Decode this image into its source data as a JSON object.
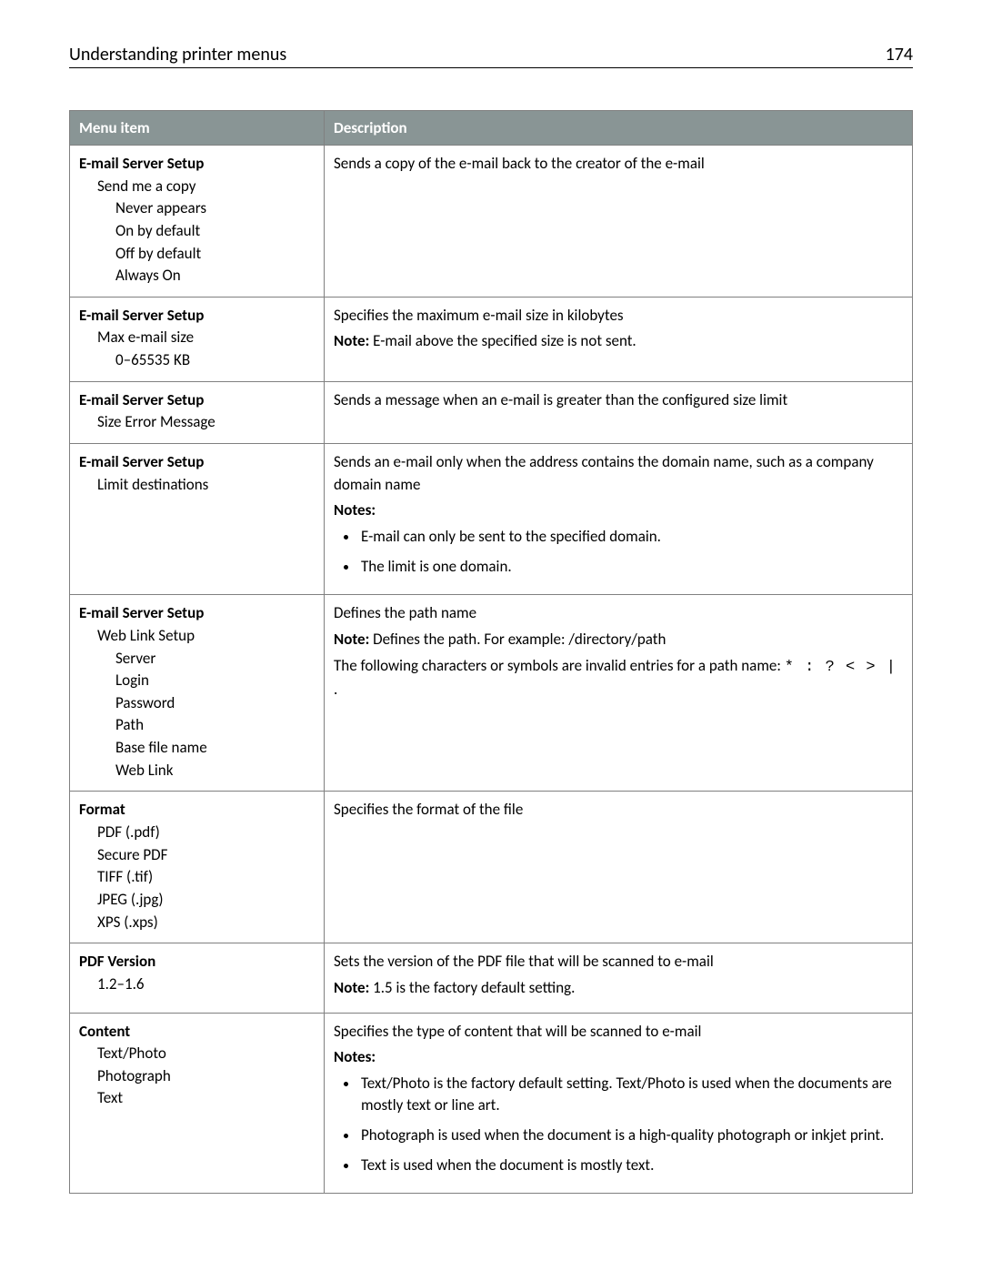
{
  "header": {
    "title": "Understanding printer menus",
    "page_number": "174"
  },
  "table": {
    "columns": {
      "menu_item": "Menu item",
      "description": "Description"
    },
    "header_bg": "#899595",
    "header_fg": "#ffffff",
    "border_color": "#808080"
  },
  "rows": {
    "r1": {
      "title": "E-mail Server Setup",
      "l1a": "Send me a copy",
      "l2a": "Never appears",
      "l2b": "On by default",
      "l2c": "Off by default",
      "l2d": "Always On",
      "desc": "Sends a copy of the e-mail back to the creator of the e-mail"
    },
    "r2": {
      "title": "E-mail Server Setup",
      "l1a": "Max e-mail size",
      "l2a": "0–65535 KB",
      "desc_line1": "Specifies the maximum e-mail size in kilobytes",
      "note_label": "Note:",
      "note_text": " E-mail above the specified size is not sent."
    },
    "r3": {
      "title": "E-mail Server Setup",
      "l1a": "Size Error Message",
      "desc": "Sends a message when an e-mail is greater than the configured size limit"
    },
    "r4": {
      "title": "E-mail Server Setup",
      "l1a": "Limit destinations",
      "desc_line1": "Sends an e-mail only when the address contains the domain name, such as a company domain name",
      "notes_label": "Notes:",
      "b1": "E-mail can only be sent to the specified domain.",
      "b2": "The limit is one domain."
    },
    "r5": {
      "title": "E-mail Server Setup",
      "l1a": "Web Link Setup",
      "l2a": "Server",
      "l2b": "Login",
      "l2c": "Password",
      "l2d": "Path",
      "l2e": "Base file name",
      "l2f": "Web Link",
      "desc_line1": "Defines the path name",
      "note_label": "Note:",
      "note_text": " Defines the path. For example: /directory/path",
      "desc_line3a": "The following characters or symbols are invalid entries for a path name: ",
      "invalid_chars": "* : ? < > |",
      "desc_line3b": " ."
    },
    "r6": {
      "title": "Format",
      "l1a": "PDF (.pdf)",
      "l1b": "Secure PDF",
      "l1c": "TIFF (.tif)",
      "l1d": "JPEG (.jpg)",
      "l1e": "XPS (.xps)",
      "desc": "Specifies the format of the file"
    },
    "r7": {
      "title": "PDF Version",
      "l1a": "1.2–1.6",
      "desc_line1": "Sets the version of the PDF file that will be scanned to e-mail",
      "note_label": "Note:",
      "note_text": " 1.5 is the factory default setting."
    },
    "r8": {
      "title": "Content",
      "l1a": "Text/Photo",
      "l1b": "Photograph",
      "l1c": "Text",
      "desc_line1": "Specifies the type of content that will be scanned to e-mail",
      "notes_label": "Notes:",
      "b1": "Text/Photo is the factory default setting. Text/Photo is used when the documents are mostly text or line art.",
      "b2": "Photograph is used when the document is a high-quality photograph or inkjet print.",
      "b3": "Text is used when the document is mostly text."
    }
  }
}
